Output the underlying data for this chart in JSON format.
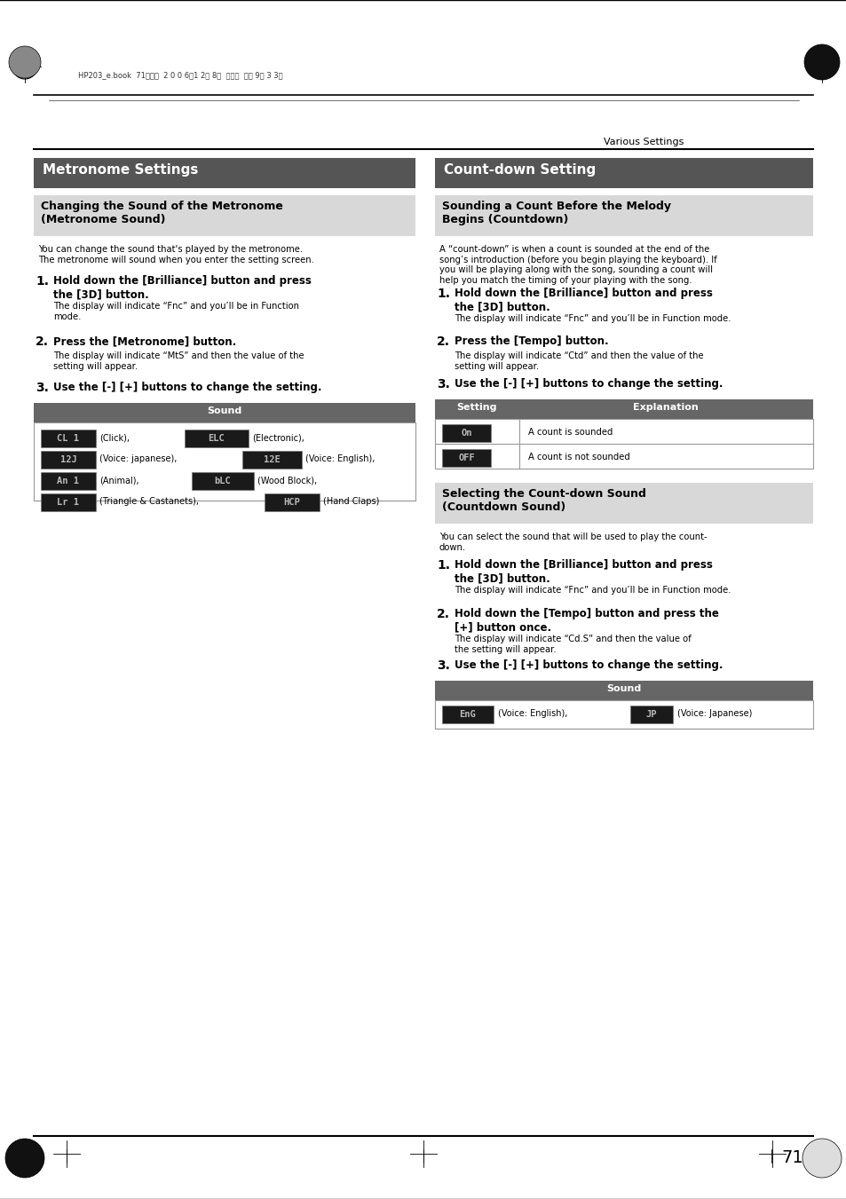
{
  "page_num": "71",
  "header_text": "HP203_e.book  71ページ  2 0 0 6年1 2月 8日  金曜日  午前 9時 3 3分",
  "top_right_text": "Various Settings",
  "bg_color": "#ffffff",
  "section_header_bg": "#555555",
  "section_header_color": "#ffffff",
  "subsection_header_bg": "#d8d8d8",
  "table_header_bg": "#666666",
  "table_header_color": "#ffffff",
  "lcd_bg": "#1a1a1a",
  "lcd_fg": "#bbbbbb",
  "left_section_title": "Metronome Settings",
  "right_section_title": "Count-down Setting",
  "line_color": "#000000",
  "border_color": "#999999"
}
